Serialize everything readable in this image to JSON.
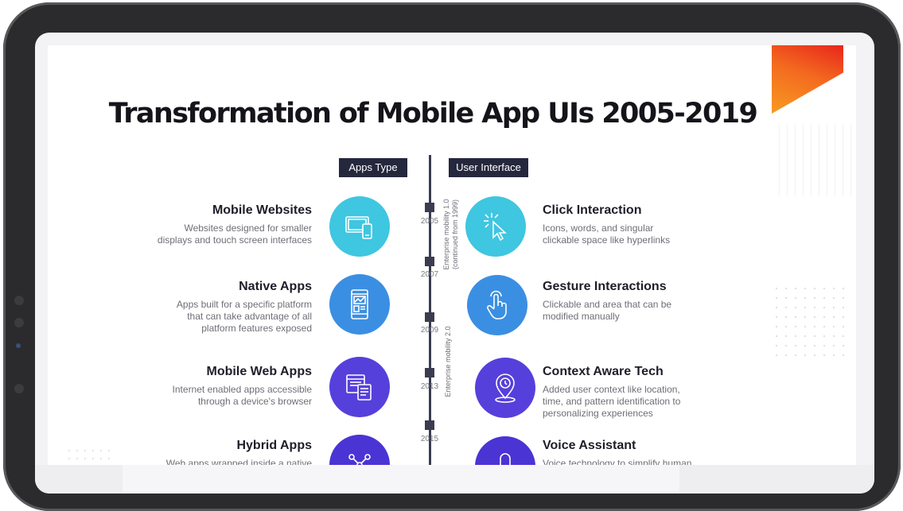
{
  "title": "Transformation of Mobile App UIs 2005-2019",
  "tags": {
    "left": "Apps Type",
    "right": "User Interface"
  },
  "years": [
    "2005",
    "2007",
    "2009",
    "2013",
    "2015"
  ],
  "eras": {
    "one": "Enterprise mobility 1.0\n(continued from 1999)",
    "two": "Enterprise mobility 2.0"
  },
  "apps": [
    {
      "title": "Mobile Websites",
      "desc": [
        "Websites designed for smaller",
        "displays and touch screen interfaces"
      ],
      "icon": "devices-icon",
      "color": "#3fc6e0"
    },
    {
      "title": "Native Apps",
      "desc": [
        "Apps built for a specific platform",
        "that can take advantage of all",
        "platform features exposed"
      ],
      "icon": "smartphone-app-icon",
      "color": "#3b8fe2"
    },
    {
      "title": "Mobile Web Apps",
      "desc": [
        "Internet enabled apps accessible",
        "through a device's browser"
      ],
      "icon": "browser-devices-icon",
      "color": "#5640dc"
    },
    {
      "title": "Hybrid Apps",
      "desc": [
        "Web apps wrapped inside a native"
      ],
      "icon": "network-icon",
      "color": "#4a34d4"
    }
  ],
  "interfaces": [
    {
      "title": "Click Interaction",
      "desc": [
        "Icons, words, and singular",
        "clickable space like hyperlinks"
      ],
      "icon": "cursor-click-icon",
      "color": "#3fc6e0"
    },
    {
      "title": "Gesture Interactions",
      "desc": [
        "Clickable and area that can be",
        "modified manually"
      ],
      "icon": "tap-gesture-icon",
      "color": "#3b8fe2"
    },
    {
      "title": "Context Aware Tech",
      "desc": [
        "Added user context like location,",
        "time, and pattern identification to",
        "personalizing experiences"
      ],
      "icon": "location-time-icon",
      "color": "#5640dc"
    },
    {
      "title": "Voice Assistant",
      "desc": [
        "Voice technology to simplify human"
      ],
      "icon": "microphone-icon",
      "color": "#4a34d4"
    }
  ]
}
